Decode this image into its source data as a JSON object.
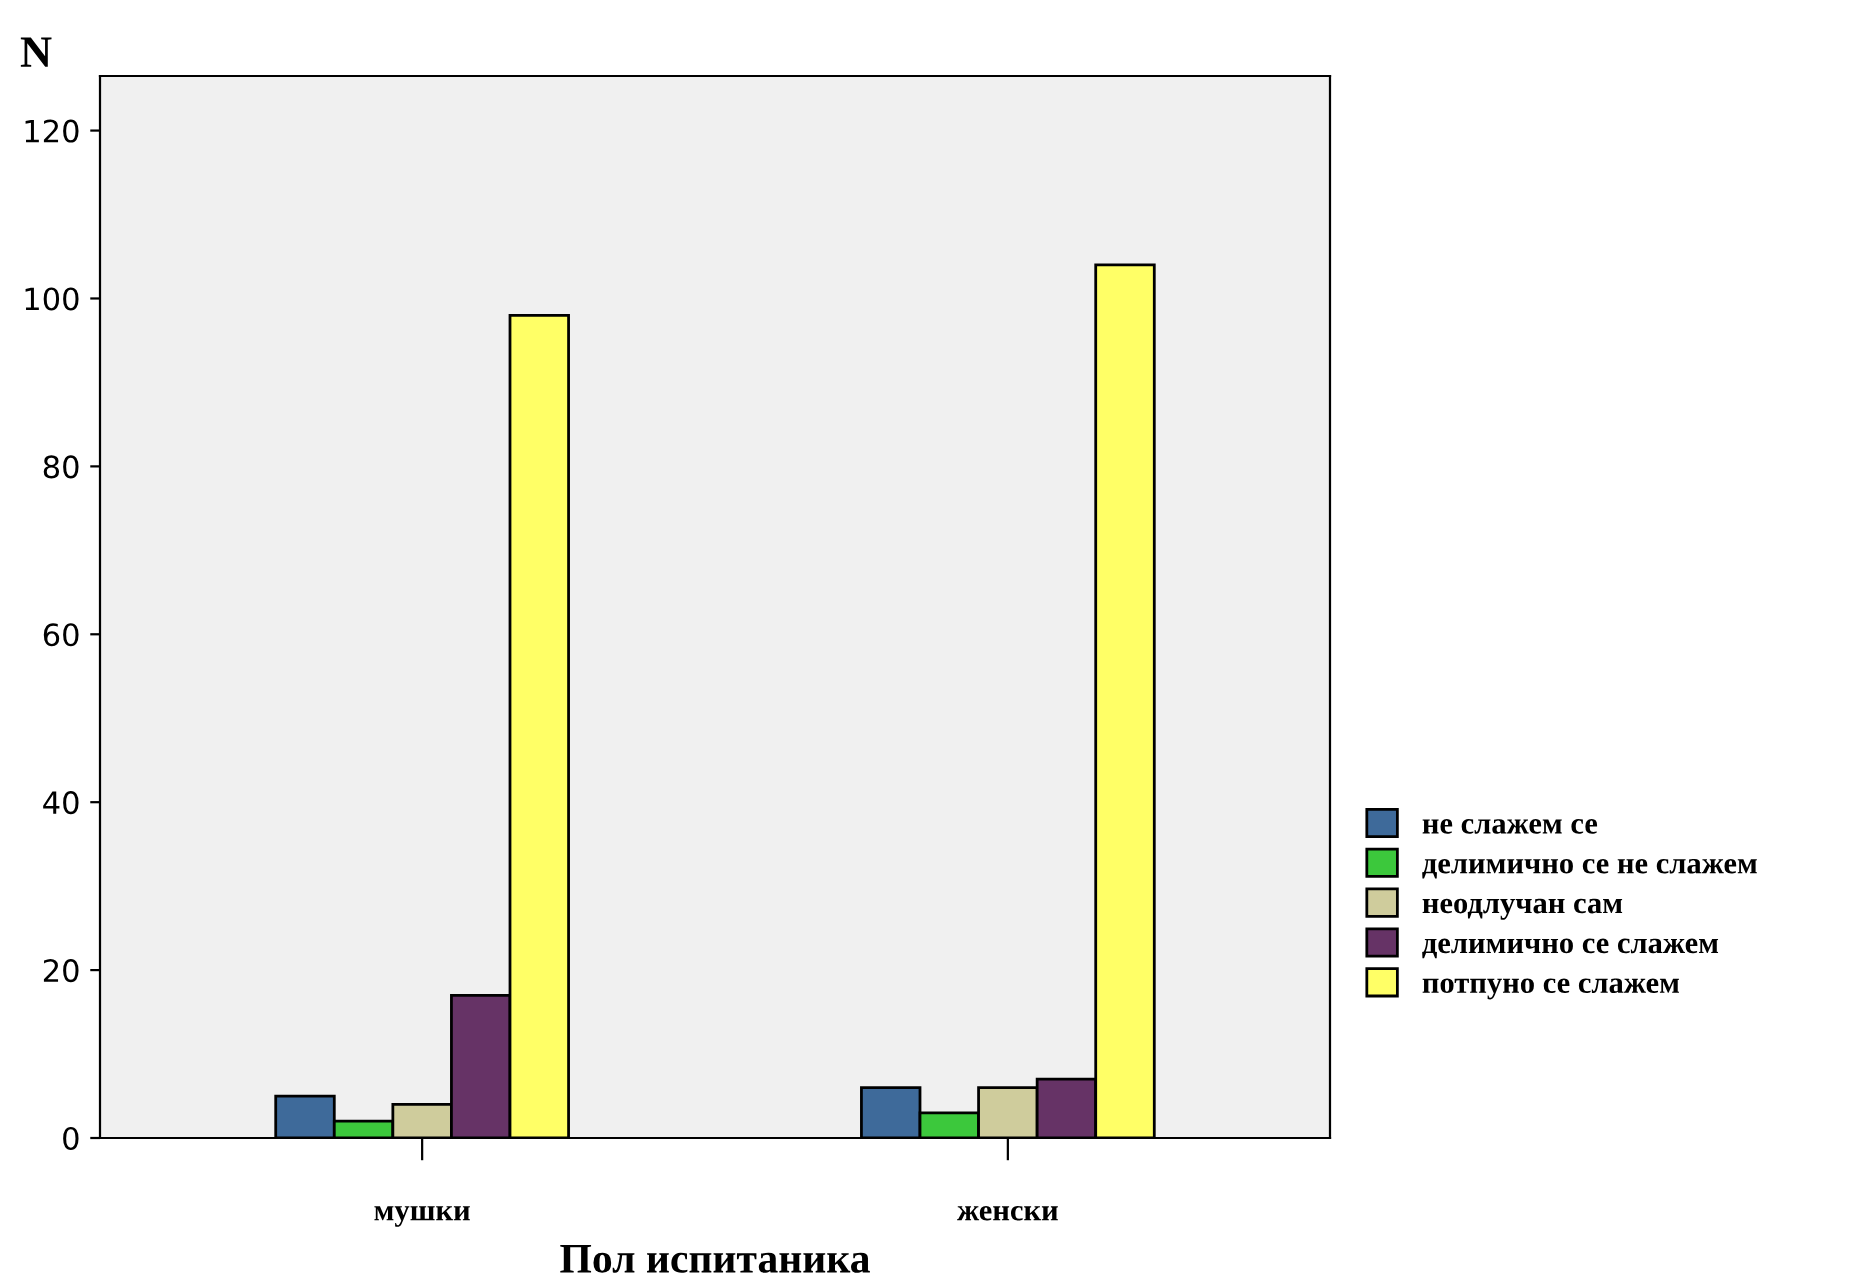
{
  "chart_data": {
    "type": "bar",
    "xlabel": "Пол испитаника",
    "ylabel": "N",
    "categories": [
      "мушки",
      "женски"
    ],
    "series": [
      {
        "name": "не слажем се",
        "color": "#3e6a9a",
        "values": [
          5,
          6
        ]
      },
      {
        "name": "делимично се не слажем",
        "color": "#3cc83c",
        "values": [
          2,
          3
        ]
      },
      {
        "name": "неодлучан сам",
        "color": "#cfcc9c",
        "values": [
          4,
          6
        ]
      },
      {
        "name": "делимично се слажем",
        "color": "#663366",
        "values": [
          17,
          7
        ]
      },
      {
        "name": "потпуно се слажем",
        "color": "#ffff66",
        "values": [
          98,
          104
        ]
      }
    ],
    "ylim": [
      0,
      126.5
    ],
    "yticks": [
      0,
      20,
      40,
      60,
      80,
      100,
      120
    ],
    "grid": false,
    "legend": "right"
  }
}
